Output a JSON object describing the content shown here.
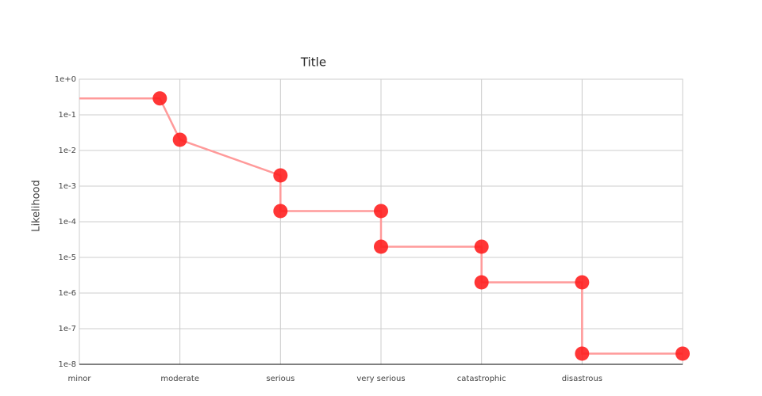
{
  "chart_data": {
    "type": "line",
    "title": "Title",
    "y_label": "Likelihood",
    "log_y": true,
    "grid": true,
    "xlim": [
      0,
      6
    ],
    "xticks": [
      {
        "value": 0,
        "label": "minor"
      },
      {
        "value": 1,
        "label": "moderate"
      },
      {
        "value": 2,
        "label": "serious"
      },
      {
        "value": 3,
        "label": "very serious"
      },
      {
        "value": 4,
        "label": "catastrophic"
      },
      {
        "value": 5,
        "label": "disastrous"
      }
    ],
    "ylim": [
      1e-08,
      1
    ],
    "yticks": [
      {
        "value": 1,
        "label": "1e+0"
      },
      {
        "value": 0.1,
        "label": "1e-1"
      },
      {
        "value": 0.01,
        "label": "1e-2"
      },
      {
        "value": 0.001,
        "label": "1e-3"
      },
      {
        "value": 0.0001,
        "label": "1e-4"
      },
      {
        "value": 1e-05,
        "label": "1e-5"
      },
      {
        "value": 1e-06,
        "label": "1e-6"
      },
      {
        "value": 1e-07,
        "label": "1e-7"
      },
      {
        "value": 1e-08,
        "label": "1e-8"
      }
    ],
    "series": [
      {
        "mode": "lines",
        "color": "#ff9a9a",
        "x": [
          0,
          0.8,
          1,
          2,
          2,
          3,
          3,
          4,
          4,
          5,
          5,
          6
        ],
        "values": [
          0.29,
          0.29,
          0.02,
          0.002,
          0.0002,
          0.0002,
          2e-05,
          2e-05,
          2e-06,
          2e-06,
          2e-08,
          2e-08
        ]
      },
      {
        "mode": "markers",
        "color": "#ff2020",
        "x": [
          0.8,
          1,
          2,
          2,
          3,
          3,
          4,
          4,
          5,
          5,
          6
        ],
        "values": [
          0.29,
          0.02,
          0.002,
          0.0002,
          0.0002,
          2e-05,
          2e-05,
          2e-06,
          2e-06,
          2e-08,
          2e-08
        ]
      }
    ]
  }
}
